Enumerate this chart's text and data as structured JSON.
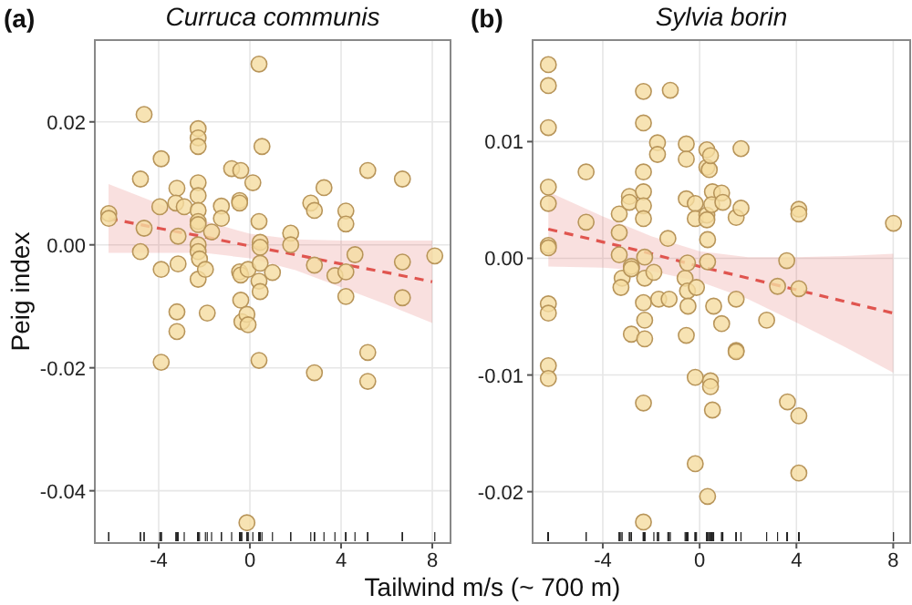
{
  "chart_data": [
    {
      "type": "scatter",
      "title": "Curruca communis",
      "ylabel": "Peig index",
      "xlabel": "Tailwind m/s (~ 700 m)",
      "annotations": [
        "(a)"
      ],
      "xlim": [
        -6.8,
        8.8
      ],
      "ylim": [
        -0.0485,
        0.0333
      ],
      "xticks": [
        -4,
        0,
        4,
        8
      ],
      "yticks": [
        -0.04,
        -0.02,
        {
          "value": 0,
          "label": "0.00"
        },
        0.02
      ],
      "grid": true,
      "series": [
        {
          "marker": "circle",
          "color": "#f5dca0",
          "x": [
            -6.19,
            -6.19,
            -4.64,
            -4.8,
            -4.64,
            -4.8,
            -3.89,
            -3.95,
            -3.89,
            -3.89,
            -3.2,
            -3.25,
            -3.15,
            -3.15,
            -3.2,
            -3.2,
            -2.88,
            -2.27,
            -2.27,
            -2.27,
            -2.27,
            -2.27,
            -2.27,
            -2.27,
            -2.27,
            -2.27,
            -2.27,
            -2.21,
            -2.27,
            -1.95,
            -1.87,
            -1.68,
            -1.25,
            -1.25,
            -0.8,
            -0.45,
            -0.45,
            -0.4,
            -0.45,
            -0.4,
            -0.4,
            -0.35,
            -0.13,
            -0.08,
            -0.13,
            -0.08,
            0.13,
            0.4,
            0.53,
            0.4,
            0.45,
            0.45,
            0.45,
            0.4,
            0.45,
            0.4,
            0.99,
            1.79,
            1.79,
            2.67,
            2.83,
            2.83,
            2.83,
            3.25,
            3.73,
            4.21,
            4.21,
            4.21,
            4.21,
            4.61,
            5.17,
            5.17,
            5.17,
            6.69,
            6.69,
            6.69,
            8.11
          ],
          "values": [
            0.0051,
            0.0043,
            0.0212,
            0.0107,
            0.0027,
            -0.0011,
            0.014,
            0.0062,
            -0.004,
            -0.0191,
            0.0092,
            0.0068,
            0.0014,
            -0.0031,
            -0.0109,
            -0.0141,
            0.0062,
            0.0189,
            0.0174,
            0.016,
            0.0101,
            0.008,
            0.0056,
            0.0038,
            0.0033,
            0.0,
            -0.0011,
            -0.0023,
            -0.0056,
            -0.004,
            -0.0111,
            0.0021,
            0.0063,
            0.0043,
            0.0124,
            0.0072,
            0.0068,
            0.0121,
            -0.0044,
            -0.0049,
            -0.009,
            -0.0125,
            -0.0113,
            -0.013,
            -0.0452,
            -0.004,
            0.0101,
            0.0294,
            0.016,
            0.0038,
            0.0004,
            -0.0004,
            -0.003,
            -0.0059,
            -0.0076,
            -0.0188,
            -0.0045,
            0.0019,
            0.0,
            0.0068,
            0.0056,
            -0.0033,
            -0.0208,
            0.0093,
            -0.005,
            0.0055,
            0.0034,
            -0.0044,
            -0.0084,
            -0.0016,
            0.0121,
            -0.0175,
            -0.0222,
            0.0107,
            -0.0028,
            -0.0086,
            -0.0018
          ]
        },
        {
          "type": "line",
          "marker": "none",
          "color": "#e0554f",
          "line_style": "dashed",
          "x": [
            -6.2,
            -4,
            -2,
            0,
            2,
            4,
            6,
            8
          ],
          "values": [
            0.0043,
            0.0027,
            0.0013,
            -0.0002,
            -0.0016,
            -0.0031,
            -0.0045,
            -0.006
          ],
          "upper": [
            0.0099,
            0.0067,
            0.0039,
            0.0018,
            0.0009,
            0.0007,
            0.0007,
            0.0007
          ],
          "lower": [
            -0.0013,
            -0.0013,
            -0.0013,
            -0.0022,
            -0.0041,
            -0.0069,
            -0.0097,
            -0.0127
          ]
        }
      ]
    },
    {
      "type": "scatter",
      "title": "Sylvia borin",
      "annotations": [
        "(b)"
      ],
      "xlim": [
        -6.9,
        8.7
      ],
      "ylim": [
        -0.0244,
        0.0187
      ],
      "xticks": [
        -4,
        0,
        4,
        8
      ],
      "yticks": [
        -0.02,
        -0.01,
        {
          "value": 0,
          "label": "0.00"
        },
        0.01
      ],
      "grid": true,
      "series": [
        {
          "marker": "circle",
          "color": "#f5dca0",
          "x": [
            -6.25,
            -6.25,
            -6.25,
            -6.25,
            -6.25,
            -6.25,
            -6.25,
            -6.25,
            -6.25,
            -6.25,
            -6.25,
            -4.69,
            -4.69,
            -3.32,
            -3.32,
            -3.32,
            -3.2,
            -3.25,
            -2.9,
            -2.9,
            -2.82,
            -2.82,
            -2.82,
            -2.32,
            -2.32,
            -2.32,
            -2.32,
            -2.32,
            -2.32,
            -2.27,
            -2.27,
            -2.32,
            -2.27,
            -2.27,
            -2.32,
            -1.89,
            -1.74,
            -1.74,
            -1.69,
            -1.31,
            -1.26,
            -1.21,
            -0.6,
            -0.55,
            -0.55,
            -0.55,
            -0.5,
            -0.5,
            -0.48,
            -0.55,
            -0.18,
            -0.18,
            -0.13,
            -0.18,
            -0.18,
            0.3,
            0.3,
            0.4,
            0.45,
            0.3,
            0.3,
            0.33,
            0.33,
            0.33,
            0.45,
            0.45,
            0.53,
            0.53,
            0.5,
            0.58,
            0.91,
            0.96,
            0.91,
            1.51,
            1.51,
            1.51,
            1.51,
            1.71,
            1.71,
            2.77,
            3.22,
            3.6,
            3.63,
            4.1,
            4.1,
            4.1,
            4.1,
            4.1,
            -2.32,
            8.01
          ],
          "values": [
            0.0166,
            0.0148,
            0.0112,
            0.0061,
            0.0047,
            0.0011,
            0.0009,
            -0.0039,
            -0.0047,
            -0.0092,
            -0.0103,
            0.0074,
            0.0031,
            0.0038,
            0.0022,
            0.0003,
            -0.0017,
            -0.0025,
            0.0053,
            0.0048,
            -0.0007,
            -0.0009,
            -0.0065,
            0.0143,
            0.0116,
            0.0074,
            0.0057,
            0.0045,
            0.0034,
            0.0001,
            -0.0017,
            -0.0038,
            -0.0053,
            -0.0069,
            -0.0124,
            -0.0012,
            0.0099,
            0.0089,
            -0.0035,
            0.0017,
            -0.0035,
            0.0144,
            -0.0017,
            0.0098,
            0.0085,
            0.0051,
            -0.0004,
            -0.0028,
            -0.0041,
            -0.0066,
            0.0047,
            0.0034,
            -0.0025,
            -0.0102,
            -0.0176,
            0.0093,
            0.0078,
            0.0076,
            0.0088,
            0.0037,
            0.0033,
            0.0016,
            -0.0003,
            -0.0204,
            -0.0105,
            -0.011,
            -0.013,
            0.0057,
            0.0046,
            -0.0041,
            0.0056,
            0.0048,
            -0.0056,
            0.0035,
            -0.0035,
            -0.0079,
            -0.008,
            0.0094,
            0.0043,
            -0.0053,
            -0.0024,
            -0.0002,
            -0.0123,
            0.0042,
            0.0038,
            -0.0026,
            -0.0135,
            -0.0184,
            -0.0226,
            0.003
          ]
        },
        {
          "type": "line",
          "marker": "none",
          "color": "#e0554f",
          "line_style": "dashed",
          "x": [
            -6.25,
            -4,
            -2,
            0,
            2,
            4,
            6,
            8
          ],
          "values": [
            0.0025,
            0.0014,
            0.0004,
            -0.0007,
            -0.0017,
            -0.0027,
            -0.0037,
            -0.0047
          ],
          "upper": [
            0.0057,
            0.0036,
            0.0019,
            0.0006,
            0.0001,
            0.0001,
            0.0002,
            0.0004
          ],
          "lower": [
            -0.0007,
            -0.0008,
            -0.0011,
            -0.002,
            -0.0035,
            -0.0055,
            -0.0076,
            -0.0098
          ]
        }
      ]
    }
  ]
}
